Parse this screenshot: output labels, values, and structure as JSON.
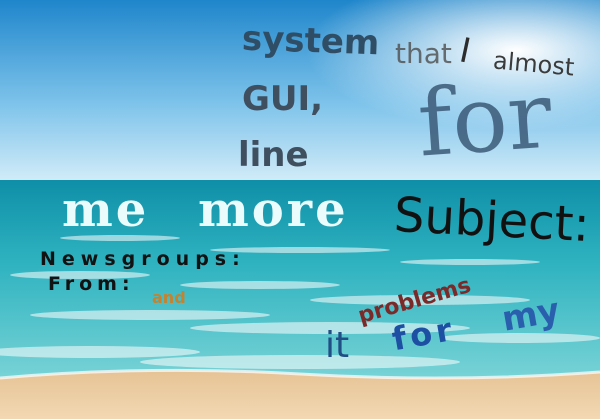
{
  "words": {
    "system": "system",
    "that": "that",
    "i": "I",
    "almost": "almost",
    "gui": "GUI,",
    "for_big": "for",
    "line": "line",
    "me": "me",
    "more": "more",
    "subject": "Subject:",
    "newsgroups": "Newsgroups:",
    "from": "From:",
    "and": "and",
    "problems": "problems",
    "it": "it",
    "for_small": "for",
    "my": "my"
  },
  "colors": {
    "sky_top": "#1c83c8",
    "sky_bottom": "#d4ecf8",
    "sea": "#1aa6b5",
    "sand": "#e8c89a"
  }
}
